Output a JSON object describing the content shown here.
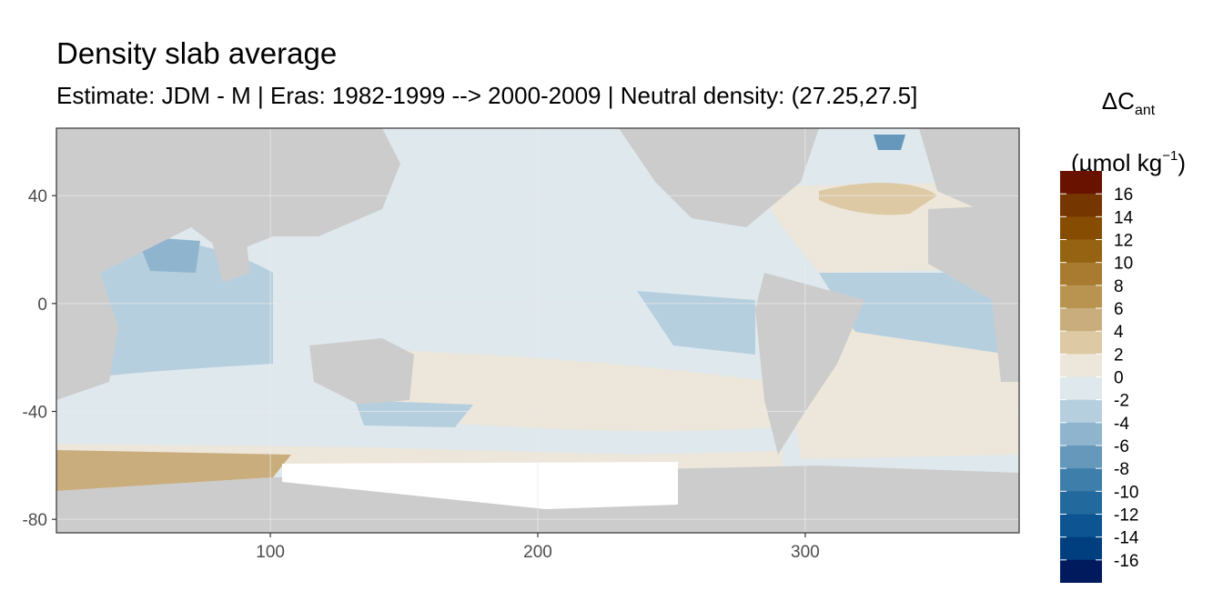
{
  "chart_data": {
    "type": "heatmap",
    "title": "Density slab average",
    "subtitle": "Estimate: JDM - M | Eras: 1982-1999 --> 2000-2009 | Neutral density: (27.25,27.5]",
    "xlabel": "",
    "ylabel": "",
    "xlim": [
      20,
      380
    ],
    "ylim": [
      -85,
      65
    ],
    "x_ticks": [
      100,
      200,
      300
    ],
    "y_ticks": [
      40,
      0,
      -40,
      -80
    ],
    "grid": true,
    "legend": {
      "position": "right",
      "title_main": "ΔC",
      "title_sub": "ant",
      "unit_main": "(µmol kg",
      "unit_sup": "−1",
      "unit_close": ")",
      "breaks": [
        {
          "label": "16",
          "color": "#6a1200"
        },
        {
          "label": "14",
          "color": "#763600"
        },
        {
          "label": "12",
          "color": "#864d02"
        },
        {
          "label": "10",
          "color": "#956311"
        },
        {
          "label": "8",
          "color": "#a87b30"
        },
        {
          "label": "6",
          "color": "#b89450"
        },
        {
          "label": "4",
          "color": "#c9ad7d"
        },
        {
          "label": "2",
          "color": "#dec9a5"
        },
        {
          "label": "0",
          "color": "#ede6da"
        },
        {
          "label": "-2",
          "color": "#dfe8ed"
        },
        {
          "label": "-4",
          "color": "#b6cfdf"
        },
        {
          "label": "-6",
          "color": "#8fb5ce"
        },
        {
          "label": "-8",
          "color": "#6598bb"
        },
        {
          "label": "-10",
          "color": "#3d7eaa"
        },
        {
          "label": "-12",
          "color": "#226a9d"
        },
        {
          "label": "-14",
          "color": "#0c5592"
        },
        {
          "label": "-16",
          "color": "#003f7f"
        }
      ],
      "bottom_color": "#001a5e"
    },
    "colors": {
      "land": "#cccccc",
      "no_data": "#ffffff",
      "panel_border": "#333333",
      "grid": "#ebebeb"
    }
  }
}
